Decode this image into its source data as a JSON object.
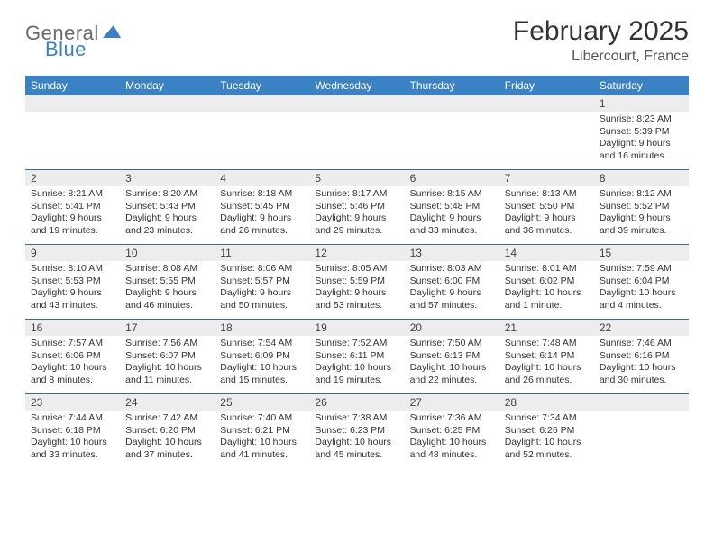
{
  "logo": {
    "general": "General",
    "blue": "Blue"
  },
  "title": "February 2025",
  "location": "Libercourt, France",
  "colors": {
    "header_bg": "#3b82c4",
    "header_text": "#ffffff",
    "daynum_bg": "#ededed",
    "row_border": "#3b6a99",
    "logo_gray": "#6b6b6b",
    "logo_blue": "#3b7fc4"
  },
  "weekdays": [
    "Sunday",
    "Monday",
    "Tuesday",
    "Wednesday",
    "Thursday",
    "Friday",
    "Saturday"
  ],
  "first_weekday_index": 6,
  "days": [
    {
      "n": 1,
      "sunrise": "8:23 AM",
      "sunset": "5:39 PM",
      "daylight": "9 hours and 16 minutes."
    },
    {
      "n": 2,
      "sunrise": "8:21 AM",
      "sunset": "5:41 PM",
      "daylight": "9 hours and 19 minutes."
    },
    {
      "n": 3,
      "sunrise": "8:20 AM",
      "sunset": "5:43 PM",
      "daylight": "9 hours and 23 minutes."
    },
    {
      "n": 4,
      "sunrise": "8:18 AM",
      "sunset": "5:45 PM",
      "daylight": "9 hours and 26 minutes."
    },
    {
      "n": 5,
      "sunrise": "8:17 AM",
      "sunset": "5:46 PM",
      "daylight": "9 hours and 29 minutes."
    },
    {
      "n": 6,
      "sunrise": "8:15 AM",
      "sunset": "5:48 PM",
      "daylight": "9 hours and 33 minutes."
    },
    {
      "n": 7,
      "sunrise": "8:13 AM",
      "sunset": "5:50 PM",
      "daylight": "9 hours and 36 minutes."
    },
    {
      "n": 8,
      "sunrise": "8:12 AM",
      "sunset": "5:52 PM",
      "daylight": "9 hours and 39 minutes."
    },
    {
      "n": 9,
      "sunrise": "8:10 AM",
      "sunset": "5:53 PM",
      "daylight": "9 hours and 43 minutes."
    },
    {
      "n": 10,
      "sunrise": "8:08 AM",
      "sunset": "5:55 PM",
      "daylight": "9 hours and 46 minutes."
    },
    {
      "n": 11,
      "sunrise": "8:06 AM",
      "sunset": "5:57 PM",
      "daylight": "9 hours and 50 minutes."
    },
    {
      "n": 12,
      "sunrise": "8:05 AM",
      "sunset": "5:59 PM",
      "daylight": "9 hours and 53 minutes."
    },
    {
      "n": 13,
      "sunrise": "8:03 AM",
      "sunset": "6:00 PM",
      "daylight": "9 hours and 57 minutes."
    },
    {
      "n": 14,
      "sunrise": "8:01 AM",
      "sunset": "6:02 PM",
      "daylight": "10 hours and 1 minute."
    },
    {
      "n": 15,
      "sunrise": "7:59 AM",
      "sunset": "6:04 PM",
      "daylight": "10 hours and 4 minutes."
    },
    {
      "n": 16,
      "sunrise": "7:57 AM",
      "sunset": "6:06 PM",
      "daylight": "10 hours and 8 minutes."
    },
    {
      "n": 17,
      "sunrise": "7:56 AM",
      "sunset": "6:07 PM",
      "daylight": "10 hours and 11 minutes."
    },
    {
      "n": 18,
      "sunrise": "7:54 AM",
      "sunset": "6:09 PM",
      "daylight": "10 hours and 15 minutes."
    },
    {
      "n": 19,
      "sunrise": "7:52 AM",
      "sunset": "6:11 PM",
      "daylight": "10 hours and 19 minutes."
    },
    {
      "n": 20,
      "sunrise": "7:50 AM",
      "sunset": "6:13 PM",
      "daylight": "10 hours and 22 minutes."
    },
    {
      "n": 21,
      "sunrise": "7:48 AM",
      "sunset": "6:14 PM",
      "daylight": "10 hours and 26 minutes."
    },
    {
      "n": 22,
      "sunrise": "7:46 AM",
      "sunset": "6:16 PM",
      "daylight": "10 hours and 30 minutes."
    },
    {
      "n": 23,
      "sunrise": "7:44 AM",
      "sunset": "6:18 PM",
      "daylight": "10 hours and 33 minutes."
    },
    {
      "n": 24,
      "sunrise": "7:42 AM",
      "sunset": "6:20 PM",
      "daylight": "10 hours and 37 minutes."
    },
    {
      "n": 25,
      "sunrise": "7:40 AM",
      "sunset": "6:21 PM",
      "daylight": "10 hours and 41 minutes."
    },
    {
      "n": 26,
      "sunrise": "7:38 AM",
      "sunset": "6:23 PM",
      "daylight": "10 hours and 45 minutes."
    },
    {
      "n": 27,
      "sunrise": "7:36 AM",
      "sunset": "6:25 PM",
      "daylight": "10 hours and 48 minutes."
    },
    {
      "n": 28,
      "sunrise": "7:34 AM",
      "sunset": "6:26 PM",
      "daylight": "10 hours and 52 minutes."
    }
  ],
  "labels": {
    "sunrise": "Sunrise:",
    "sunset": "Sunset:",
    "daylight": "Daylight:"
  }
}
